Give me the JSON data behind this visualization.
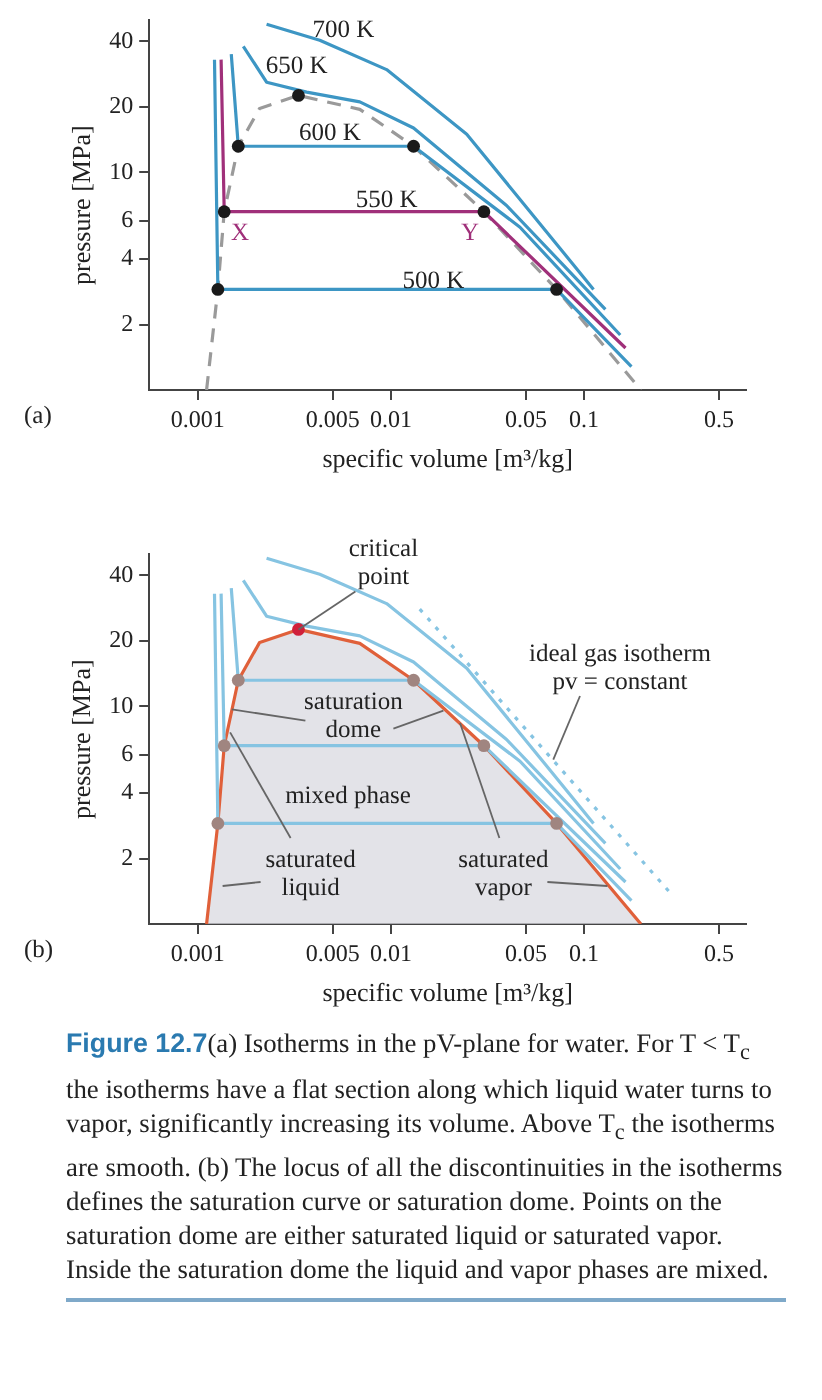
{
  "chart_data": [
    {
      "type": "line",
      "xlabel": "specific volume [m³/kg]",
      "ylabel": "pressure [MPa]",
      "log": "xy",
      "xlim": [
        0.00056,
        0.69
      ],
      "ylim": [
        1,
        50
      ],
      "xticks": [
        0.001,
        0.005,
        0.01,
        0.05,
        0.1,
        0.5
      ],
      "yticks": [
        2,
        4,
        6,
        10,
        20,
        40
      ],
      "grid": false,
      "series": [
        {
          "type": "line",
          "color": "#9a9a9a",
          "line_style": "dashed",
          "x": [
            0.00111,
            0.00127,
            0.00137,
            0.00162,
            0.00209,
            0.00332,
            0.0069,
            0.0131,
            0.0303,
            0.0721,
            0.197
          ],
          "values": [
            1,
            2.9,
            6.6,
            13.2,
            19.7,
            22.6,
            19.5,
            13.2,
            6.6,
            2.9,
            1
          ]
        },
        {
          "type": "line",
          "color": "#3d96c4",
          "x": [
            0.00227,
            0.00428,
            0.0095,
            0.0247,
            0.112
          ],
          "values": [
            48,
            40.5,
            29.7,
            15,
            2.9
          ]
        },
        {
          "type": "line",
          "color": "#3d96c4",
          "x": [
            0.00172,
            0.00227,
            0.00366,
            0.0069,
            0.0131,
            0.0397,
            0.129
          ],
          "values": [
            38,
            26,
            23.4,
            21.1,
            16,
            7.05,
            2.35
          ]
        },
        {
          "type": "line",
          "color": "#3d96c4",
          "x": [
            0.00149,
            0.00162,
            0.0131,
            0.0466,
            0.154
          ],
          "values": [
            35,
            13.2,
            13.2,
            5.6,
            1.79
          ]
        },
        {
          "type": "line",
          "color": "#a0307a",
          "x": [
            0.00132,
            0.00137,
            0.0303,
            0.164
          ],
          "values": [
            33,
            6.6,
            6.6,
            1.56
          ]
        },
        {
          "type": "line",
          "color": "#3d96c4",
          "x": [
            0.00122,
            0.00127,
            0.0721,
            0.176
          ],
          "values": [
            33,
            2.9,
            2.9,
            1.28
          ]
        },
        {
          "type": "scatter",
          "color": "#1a1a1a",
          "marker": "circle",
          "x": [
            0.00127,
            0.0721,
            0.00137,
            0.0303,
            0.00162,
            0.0131,
            0.00332
          ],
          "values": [
            2.9,
            2.9,
            6.6,
            6.6,
            13.2,
            13.2,
            22.6
          ]
        }
      ],
      "annotations": [
        "700 K",
        "650 K",
        "600 K",
        "550 K",
        "500 K",
        "X",
        "Y",
        "(a)"
      ]
    },
    {
      "type": "line",
      "xlabel": "specific volume [m³/kg]",
      "ylabel": "pressure [MPa]",
      "log": "xy",
      "xlim": [
        0.00056,
        0.69
      ],
      "ylim": [
        1,
        50
      ],
      "xticks": [
        0.001,
        0.005,
        0.01,
        0.05,
        0.1,
        0.5
      ],
      "yticks": [
        2,
        4,
        6,
        10,
        20,
        40
      ],
      "grid": false,
      "series": [
        {
          "type": "area",
          "color": "#e0603a",
          "x": [
            0.00111,
            0.00127,
            0.00137,
            0.00162,
            0.00209,
            0.00332,
            0.0069,
            0.0131,
            0.0303,
            0.0721,
            0.197
          ],
          "values": [
            1,
            2.9,
            6.6,
            13.2,
            19.7,
            22.6,
            19.5,
            13.2,
            6.6,
            2.9,
            1
          ]
        },
        {
          "type": "line",
          "color": "#86c4e2",
          "x": [
            0.00227,
            0.00428,
            0.0095,
            0.0247,
            0.112
          ],
          "values": [
            48,
            40.5,
            29.7,
            15,
            2.9
          ]
        },
        {
          "type": "line",
          "color": "#86c4e2",
          "x": [
            0.00172,
            0.00227,
            0.00366,
            0.0069,
            0.0131,
            0.0397,
            0.129
          ],
          "values": [
            38,
            26,
            23.4,
            21.1,
            16,
            7.05,
            2.35
          ]
        },
        {
          "type": "line",
          "color": "#86c4e2",
          "x": [
            0.00149,
            0.00162,
            0.0131,
            0.0466,
            0.154
          ],
          "values": [
            35,
            13.2,
            13.2,
            5.6,
            1.79
          ]
        },
        {
          "type": "line",
          "color": "#86c4e2",
          "x": [
            0.00132,
            0.00137,
            0.0303,
            0.164
          ],
          "values": [
            33,
            6.6,
            6.6,
            1.56
          ]
        },
        {
          "type": "line",
          "color": "#86c4e2",
          "x": [
            0.00122,
            0.00127,
            0.0721,
            0.176
          ],
          "values": [
            33,
            2.9,
            2.9,
            1.28
          ]
        },
        {
          "type": "line",
          "color": "#86c4e2",
          "line_style": "dotted",
          "x": [
            0.0141,
            0.29
          ],
          "values": [
            28,
            1.34
          ]
        },
        {
          "type": "scatter",
          "marker": "circle",
          "x": [
            0.00127,
            0.0721,
            0.00137,
            0.0303,
            0.00162,
            0.0131,
            0.00332
          ],
          "values": [
            2.9,
            2.9,
            6.6,
            6.6,
            13.2,
            13.2,
            22.6
          ],
          "colors": [
            "#a08580",
            "#a08580",
            "#a08580",
            "#a08580",
            "#a08580",
            "#a08580",
            "#d0203a"
          ]
        }
      ],
      "annotations": [
        {
          "text": "critical\npoint",
          "x": 0.00332,
          "y": 22.6
        },
        {
          "text": "saturation\ndome",
          "x": 0.0015,
          "y": 9.7
        },
        "mixed phase",
        {
          "text": "saturated\nliquid",
          "x": 0.00147,
          "y": 7.6
        },
        {
          "text": "saturated\nvapor",
          "x": 0.0228,
          "y": 8.4
        },
        {
          "text": "ideal gas isotherm\npv = constant",
          "x": 0.0693,
          "y": 5.7
        },
        "(b)",
        "Figure 12.7(a) Isotherms in the pV-plane for water. For T < T$_{c}$ the isotherms have a flat section along which liquid water turns to vapor, significantly increasing its volume. Above T$_{c}$ the isotherms are smooth. (b) The locus of all the discontinuities in the isotherms defines the saturation curve or saturation dome. Points on the saturation dome are either saturated liquid or saturated vapor. Inside the saturation dome the liquid and vapor phases are mixed."
      ]
    }
  ]
}
